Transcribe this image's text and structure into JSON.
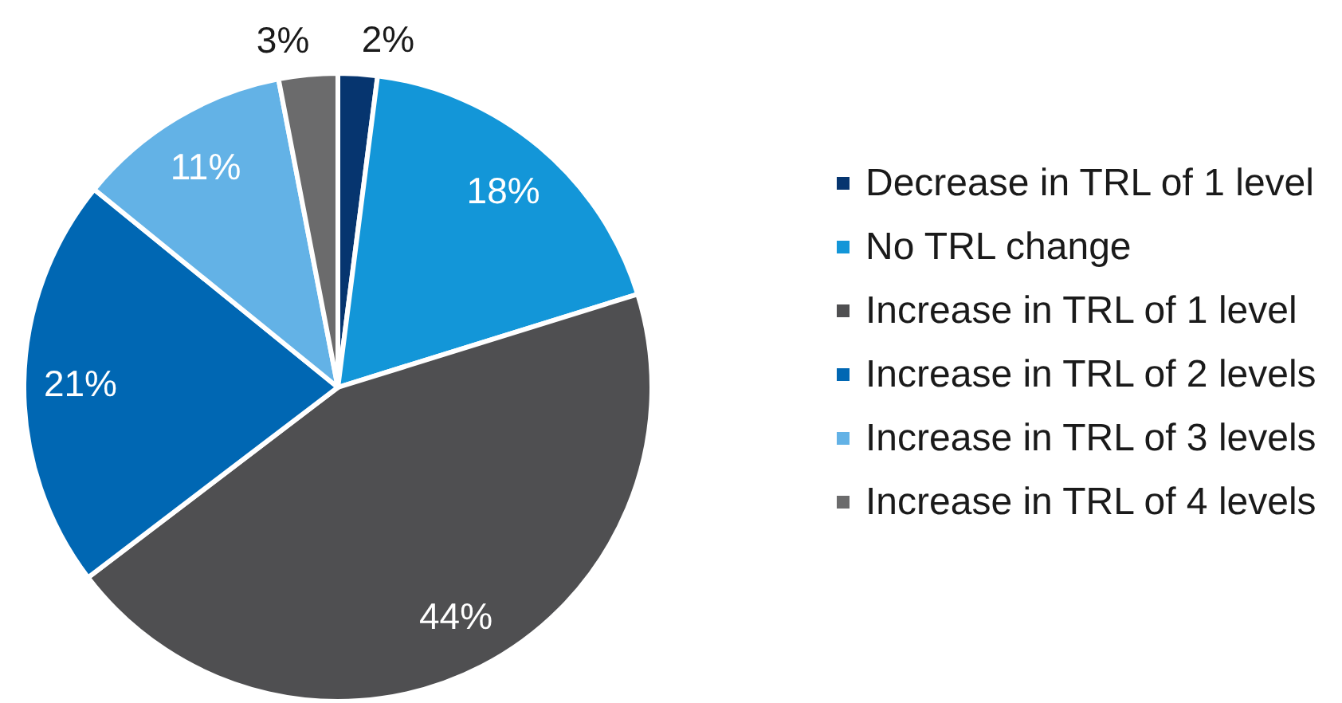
{
  "chart_data": {
    "type": "pie",
    "categories": [
      "Decrease in TRL of 1 level",
      "No TRL change",
      "Increase in TRL of 1 level",
      "Increase in TRL of 2 levels",
      "Increase in TRL of 3 levels",
      "Increase in TRL of 4 levels"
    ],
    "values": [
      2,
      18,
      44,
      21,
      11,
      3
    ],
    "colors": [
      "#06356f",
      "#1396d8",
      "#4f4f51",
      "#0067b3",
      "#63b2e6",
      "#6b6b6c"
    ],
    "value_labels": [
      "2%",
      "18%",
      "44%",
      "21%",
      "11%",
      "3%"
    ],
    "legend": "right"
  }
}
